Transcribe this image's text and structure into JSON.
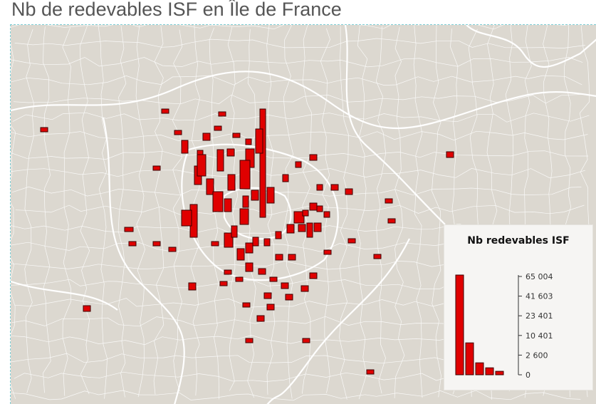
{
  "title": "Nb de redevables ISF en Île de France",
  "colors": {
    "land": "#dcd8d0",
    "commune_border": "#ffffff",
    "bar_fill": "#e00000",
    "bar_stroke": "#3a0000",
    "frame_border": "#7fcfd6",
    "legend_bg": "#f6f5f3"
  },
  "legend": {
    "title": "Nb redevables ISF",
    "scale_ticks": [
      "65 004",
      "41 603",
      "23 401",
      "10 401",
      "2 600",
      "0"
    ],
    "histogram_bins": [
      1.0,
      0.32,
      0.12,
      0.07,
      0.035
    ]
  },
  "map": {
    "region": "Île de France",
    "symbol": "proportional-bar",
    "note": "bar height ~ number of ISF payers per commune"
  }
}
